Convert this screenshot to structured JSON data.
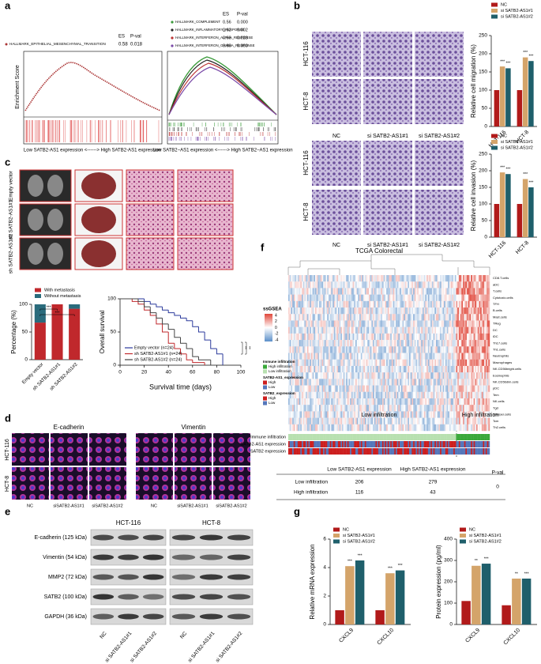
{
  "panels": [
    "a",
    "b",
    "c",
    "d",
    "e",
    "f",
    "g"
  ],
  "gsea": {
    "left": {
      "header": [
        "ES",
        "P-val"
      ],
      "entries": [
        {
          "name": "HALLMARK_EPITHELIAL_MESENCHYMAL_TRANSITION",
          "es": 0.58,
          "pval": 0.018
        }
      ],
      "ylabel": "Enrichment Score",
      "xlabel": "Low SATB2-AS1 expression <------> High SATB2-AS1 expression"
    },
    "right": {
      "header": [
        "ES",
        "P-val"
      ],
      "entries": [
        {
          "name": "HALLMARK_COMPLEMENT",
          "es": 0.56,
          "pval": "0.000"
        },
        {
          "name": "HALLMARK_INFLAMMATORY_RESPONSE",
          "es": 0.62,
          "pval": 0.002
        },
        {
          "name": "HALLMARK_INTERFERON_ALPHA_RESPONSE",
          "es": 0.69,
          "pval": 0.023
        },
        {
          "name": "HALLMARK_INTERFERON_GAMMA_RESPONSE",
          "es": 0.69,
          "pval": 0.003
        }
      ],
      "xlabel": "Low SATB2−AS1 expression <------> High SATB2−AS1 expression"
    }
  },
  "transwell": {
    "rows": [
      "HCT-116",
      "HCT-8"
    ],
    "cols": [
      "NC",
      "si SATB2-AS1#1",
      "si SATB2-AS1#2"
    ]
  },
  "xenograft": {
    "rows": [
      "Empty vector",
      "sh SATB2-AS1#1",
      "sh SATB2-AS1#2"
    ]
  },
  "immunofluorescence": {
    "markers": [
      "E-cadherin",
      "Vimentin"
    ],
    "rows": [
      "HCT-116",
      "HCT-8"
    ],
    "cols": [
      "NC",
      "siSATB2-AS1#1",
      "siSATB2-AS1#2"
    ]
  },
  "western": {
    "lines": [
      "HCT-116",
      "HCT-8"
    ],
    "proteins": [
      "E-cadherin (125 kDa)",
      "Vimentin (54 kDa)",
      "MMP2 (72 kDa)",
      "SATB2 (100 kDa)",
      "GAPDH (36 kDa)"
    ],
    "lanes": [
      "NC",
      "si SATB2-AS1#1",
      "si SATB2-AS1#2"
    ]
  },
  "heatmap": {
    "title": "TCGA Colorectal",
    "legend_title": "ssGSEA",
    "legend_ticks": [
      4,
      2,
      0,
      -2,
      -4
    ],
    "rows": [
      "CD8.T.cells",
      "aDC",
      "T.cells",
      "Cytotoxic.cells",
      "TFH",
      "B.cells",
      "Mast.cells",
      "TReg",
      "DC",
      "iDC",
      "Th17.cells",
      "Th1.cells",
      "Neutrophils",
      "Macrophages",
      "NK.CD56bright.cells",
      "Eosinophils",
      "NK.CD56dim.cells",
      "pDC",
      "Tem",
      "NK.cells",
      "Tgd",
      "T.helper.cells",
      "Tcm",
      "Th2.cells"
    ],
    "region_labels": [
      "Low infiltration",
      "High infiltration"
    ],
    "legend_groups": [
      {
        "title": "Immune infiltration",
        "items": [
          "High infiltration",
          "Low infiltration"
        ]
      },
      {
        "title": "SATB2-AS1_expression",
        "items": [
          "High",
          "Low"
        ]
      },
      {
        "title": "SATB2_expression",
        "items": [
          "High",
          "Low"
        ]
      }
    ],
    "tracks": [
      "Immune infiltration",
      "SATB2-AS1 expression",
      "SATB2 expression"
    ]
  },
  "table": {
    "columns": [
      "Low SATB2-AS1 expression",
      "High SATB2-AS1 expression",
      "P-val"
    ],
    "rows": [
      {
        "label": "Low infiltration",
        "values": [
          206,
          279
        ]
      },
      {
        "label": "High infiltration",
        "values": [
          116,
          43
        ]
      }
    ],
    "pval": 0
  },
  "chart_data": [
    {
      "type": "bar",
      "ylabel": "Relative cell migration (%)",
      "categories": [
        "HCT-116",
        "HCT-8"
      ],
      "ylim": [
        0,
        250
      ],
      "yticks": [
        0,
        50,
        100,
        150,
        200,
        250
      ],
      "series": [
        {
          "name": "NC",
          "color": "#b11a1a",
          "values": [
            100,
            100
          ]
        },
        {
          "name": "si SATB2-AS1#1",
          "color": "#d4a46a",
          "values": [
            165,
            190
          ],
          "sig": [
            "***",
            "***"
          ]
        },
        {
          "name": "si SATB2-AS1#2",
          "color": "#1f5f6b",
          "values": [
            160,
            180
          ],
          "sig": [
            "***",
            "***"
          ]
        }
      ]
    },
    {
      "type": "bar",
      "ylabel": "Relative cell invasion (%)",
      "categories": [
        "HCT-116",
        "HCT-8"
      ],
      "ylim": [
        0,
        250
      ],
      "yticks": [
        0,
        50,
        100,
        150,
        200,
        250
      ],
      "series": [
        {
          "name": "NC",
          "color": "#b11a1a",
          "values": [
            100,
            100
          ]
        },
        {
          "name": "si SATB2-AS1#1",
          "color": "#d4a46a",
          "values": [
            195,
            175
          ],
          "sig": [
            "***",
            "***"
          ]
        },
        {
          "name": "si SATB2-AS1#2",
          "color": "#1f5f6b",
          "values": [
            190,
            150
          ],
          "sig": [
            "***",
            "***"
          ]
        }
      ]
    },
    {
      "type": "stacked_bar",
      "ylabel": "Percentage (%)",
      "categories": [
        "Empty vector",
        "sh SATB2-AS1#1",
        "sh SATB2-AS1#2"
      ],
      "ylim": [
        0,
        100
      ],
      "yticks": [
        0,
        50,
        100
      ],
      "series": [
        {
          "name": "With metastasis",
          "color": "#c0282c",
          "values": [
            67,
            100,
            92
          ]
        },
        {
          "name": "Without metastasis",
          "color": "#2a6b7c",
          "values": [
            33,
            0,
            8
          ]
        }
      ],
      "annotations": [
        "***",
        "***"
      ]
    },
    {
      "type": "step",
      "xlabel": "Survival time (days)",
      "ylabel": "Overall survival",
      "xlim": [
        0,
        100
      ],
      "xticks": [
        0,
        20,
        40,
        60,
        80,
        100
      ],
      "ylim": [
        0,
        100
      ],
      "yticks": [
        0,
        50,
        100
      ],
      "series": [
        {
          "name": "Empty vector (n=24)",
          "color": "#2b3a9c",
          "x": [
            0,
            20,
            25,
            30,
            35,
            40,
            45,
            50,
            55,
            60,
            65,
            70,
            75,
            80,
            85
          ],
          "values": [
            100,
            96,
            92,
            88,
            83,
            79,
            75,
            71,
            67,
            58,
            50,
            38,
            25,
            17,
            0
          ]
        },
        {
          "name": "sh SATB2-AS1#1 (n=24)",
          "color": "#c0282c",
          "x": [
            0,
            10,
            15,
            20,
            25,
            30,
            35,
            40,
            45,
            50,
            55,
            60,
            70
          ],
          "values": [
            100,
            96,
            92,
            83,
            75,
            62,
            50,
            33,
            25,
            17,
            8,
            4,
            0
          ]
        },
        {
          "name": "sh SATB2-AS1#2 (n=24)",
          "color": "#444444",
          "x": [
            0,
            15,
            20,
            25,
            30,
            35,
            40,
            45,
            50,
            55,
            60,
            65,
            75
          ],
          "values": [
            100,
            96,
            88,
            79,
            71,
            62,
            54,
            42,
            33,
            25,
            13,
            8,
            0
          ]
        }
      ],
      "annotations": [
        "**",
        "**"
      ]
    },
    {
      "type": "bar",
      "ylabel": "Relative mRNA expression",
      "categories": [
        "CXCL9",
        "CXCL10"
      ],
      "ylim": [
        0,
        6
      ],
      "yticks": [
        0,
        2,
        4,
        6
      ],
      "series": [
        {
          "name": "NC",
          "color": "#b11a1a",
          "values": [
            1,
            1
          ]
        },
        {
          "name": "si SATB2-AS1#1",
          "color": "#d4a46a",
          "values": [
            4.1,
            3.6
          ],
          "sig": [
            "***",
            "***"
          ]
        },
        {
          "name": "si SATB2-AS1#2",
          "color": "#1f5f6b",
          "values": [
            4.5,
            3.8
          ],
          "sig": [
            "***",
            "***"
          ]
        }
      ]
    },
    {
      "type": "bar",
      "ylabel": "Protein expression (pg/ml)",
      "categories": [
        "CXCL9",
        "CXCL10"
      ],
      "ylim": [
        0,
        400
      ],
      "yticks": [
        0,
        100,
        200,
        300,
        400
      ],
      "series": [
        {
          "name": "NC",
          "color": "#b11a1a",
          "values": [
            110,
            90
          ]
        },
        {
          "name": "si SATB2-AS1#1",
          "color": "#d4a46a",
          "values": [
            275,
            215
          ],
          "sig": [
            "**",
            "**"
          ]
        },
        {
          "name": "si SATB2-AS1#2",
          "color": "#1f5f6b",
          "values": [
            285,
            215
          ],
          "sig": [
            "***",
            "***"
          ]
        }
      ]
    }
  ]
}
